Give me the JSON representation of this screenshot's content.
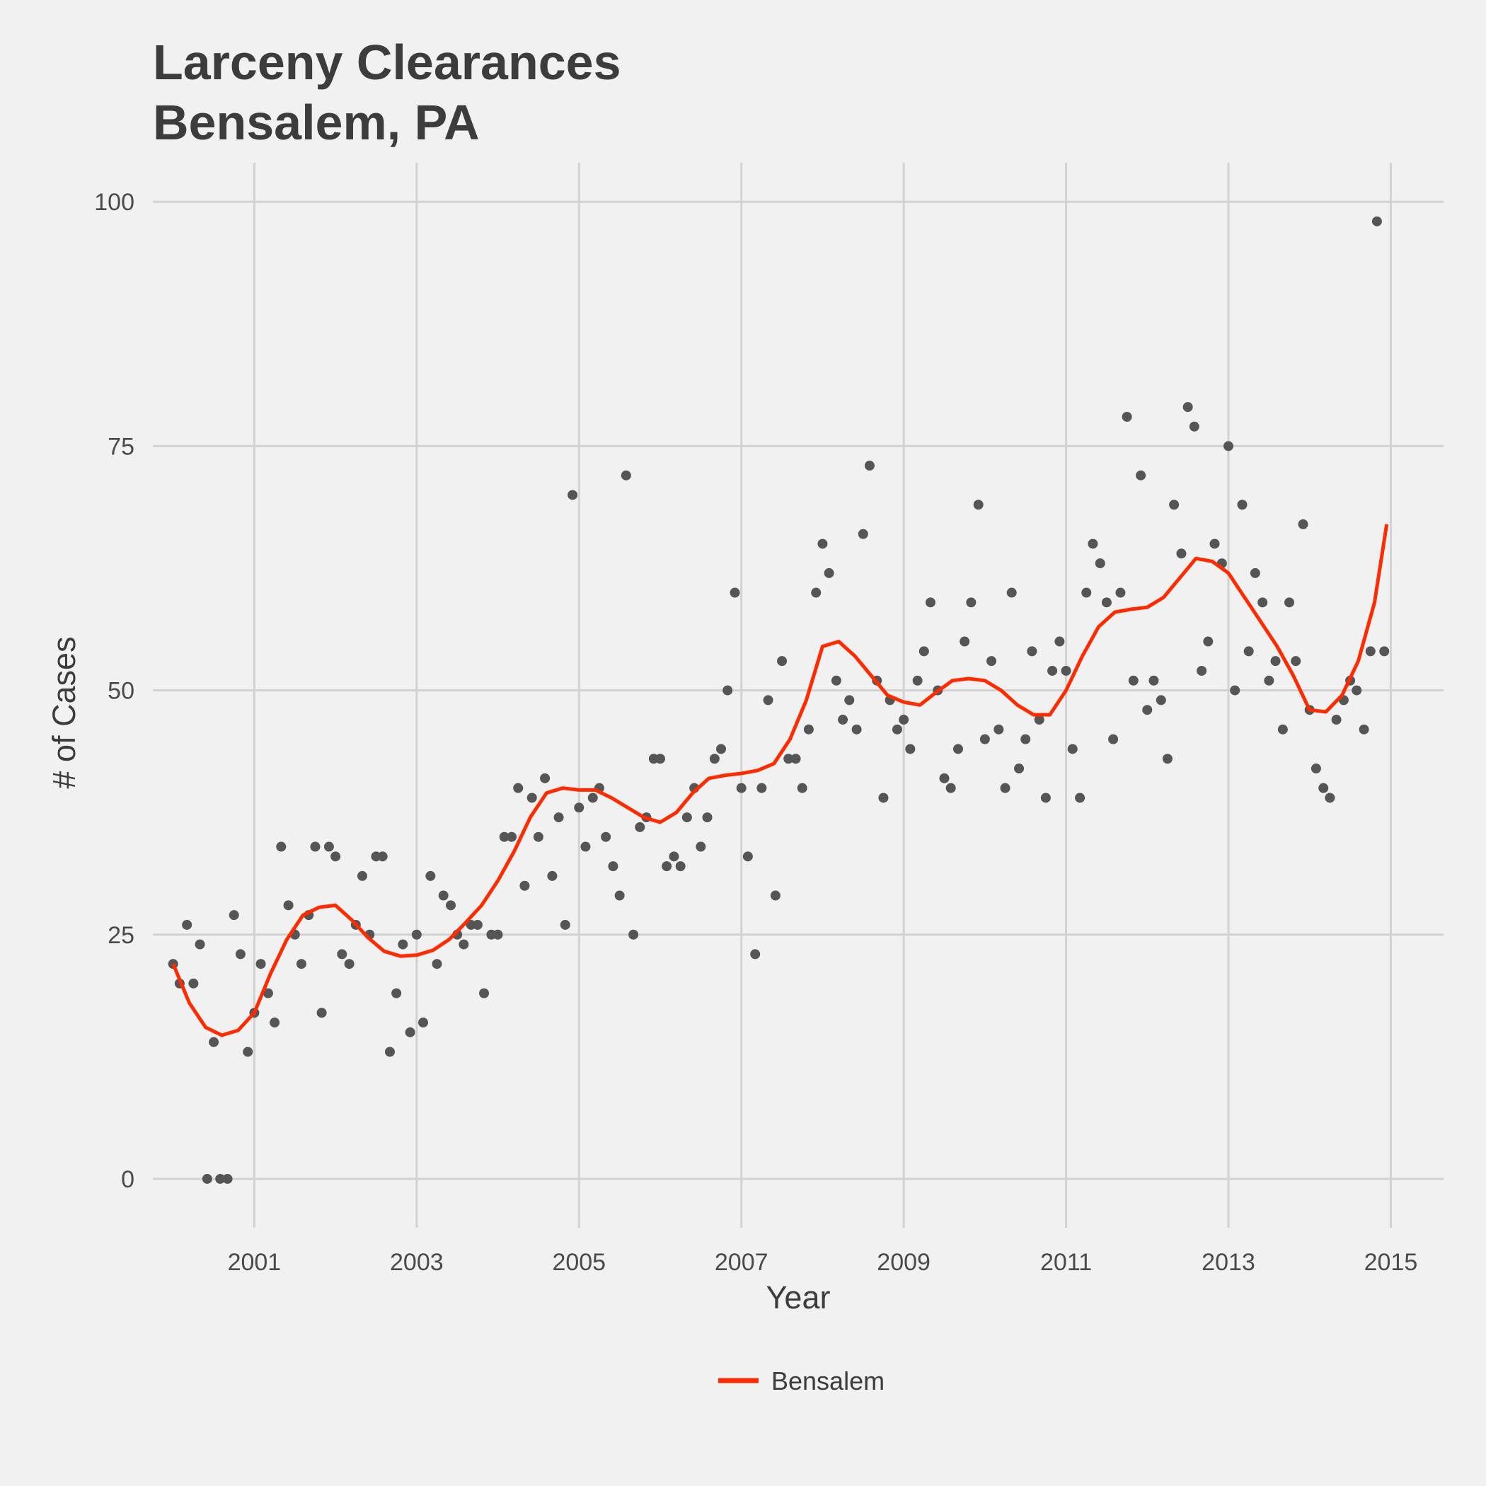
{
  "chart_data": {
    "type": "scatter",
    "title": [
      "Larceny Clearances",
      "Bensalem, PA"
    ],
    "xlabel": "Year",
    "ylabel": "# of Cases",
    "xlim": [
      1999.75,
      2015.65
    ],
    "ylim": [
      -5,
      104
    ],
    "x_ticks": [
      2001,
      2003,
      2005,
      2007,
      2009,
      2011,
      2013,
      2015
    ],
    "y_ticks": [
      0,
      25,
      50,
      75,
      100
    ],
    "grid": true,
    "legend_position": "bottom",
    "colors": {
      "points": "#555555",
      "line": "#ff2a00",
      "grid": "#d2d2d2",
      "background": "#f1f1f1"
    },
    "series": [
      {
        "kind": "points",
        "x": [
          2000.0,
          2000.08,
          2000.17,
          2000.25,
          2000.33,
          2000.42,
          2000.5,
          2000.58,
          2000.67,
          2000.75,
          2000.83,
          2000.92,
          2001.0,
          2001.08,
          2001.17,
          2001.25,
          2001.33,
          2001.42,
          2001.5,
          2001.58,
          2001.67,
          2001.75,
          2001.83,
          2001.92,
          2002.0,
          2002.08,
          2002.17,
          2002.25,
          2002.33,
          2002.42,
          2002.5,
          2002.58,
          2002.67,
          2002.75,
          2002.83,
          2002.92,
          2003.0,
          2003.08,
          2003.17,
          2003.25,
          2003.33,
          2003.42,
          2003.5,
          2003.58,
          2003.67,
          2003.75,
          2003.83,
          2003.92,
          2004.0,
          2004.08,
          2004.17,
          2004.25,
          2004.33,
          2004.42,
          2004.5,
          2004.58,
          2004.67,
          2004.75,
          2004.83,
          2004.92,
          2005.0,
          2005.08,
          2005.17,
          2005.25,
          2005.33,
          2005.42,
          2005.5,
          2005.58,
          2005.67,
          2005.75,
          2005.83,
          2005.92,
          2006.0,
          2006.08,
          2006.17,
          2006.25,
          2006.33,
          2006.42,
          2006.5,
          2006.58,
          2006.67,
          2006.75,
          2006.83,
          2006.92,
          2007.0,
          2007.08,
          2007.17,
          2007.25,
          2007.33,
          2007.42,
          2007.5,
          2007.58,
          2007.67,
          2007.75,
          2007.83,
          2007.92,
          2008.0,
          2008.08,
          2008.17,
          2008.25,
          2008.33,
          2008.42,
          2008.5,
          2008.58,
          2008.67,
          2008.75,
          2008.83,
          2008.92,
          2009.0,
          2009.08,
          2009.17,
          2009.25,
          2009.33,
          2009.42,
          2009.5,
          2009.58,
          2009.67,
          2009.75,
          2009.83,
          2009.92,
          2010.0,
          2010.08,
          2010.17,
          2010.25,
          2010.33,
          2010.42,
          2010.5,
          2010.58,
          2010.67,
          2010.75,
          2010.83,
          2010.92,
          2011.0,
          2011.08,
          2011.17,
          2011.25,
          2011.33,
          2011.42,
          2011.5,
          2011.58,
          2011.67,
          2011.75,
          2011.83,
          2011.92,
          2012.0,
          2012.08,
          2012.17,
          2012.25,
          2012.33,
          2012.42,
          2012.5,
          2012.58,
          2012.67,
          2012.75,
          2012.83,
          2012.92,
          2013.0,
          2013.08,
          2013.17,
          2013.25,
          2013.33,
          2013.42,
          2013.5,
          2013.58,
          2013.67,
          2013.75,
          2013.83,
          2013.92,
          2014.0,
          2014.08,
          2014.17,
          2014.25,
          2014.33,
          2014.42,
          2014.5,
          2014.58,
          2014.67,
          2014.75,
          2014.83,
          2014.92
        ],
        "y": [
          22,
          20,
          26,
          20,
          24,
          0,
          14,
          0,
          0,
          27,
          23,
          13,
          17,
          22,
          19,
          16,
          34,
          28,
          25,
          22,
          27,
          34,
          17,
          34,
          33,
          23,
          22,
          26,
          31,
          25,
          33,
          33,
          13,
          19,
          24,
          15,
          25,
          16,
          31,
          22,
          29,
          28,
          25,
          24,
          26,
          26,
          19,
          25,
          25,
          35,
          35,
          40,
          30,
          39,
          35,
          41,
          31,
          37,
          26,
          70,
          38,
          34,
          39,
          40,
          35,
          32,
          29,
          72,
          25,
          36,
          37,
          43,
          43,
          32,
          33,
          32,
          37,
          40,
          34,
          37,
          43,
          44,
          50,
          60,
          40,
          33,
          23,
          40,
          49,
          29,
          53,
          43,
          43,
          40,
          46,
          60,
          65,
          62,
          51,
          47,
          49,
          46,
          66,
          73,
          51,
          39,
          49,
          46,
          47,
          44,
          51,
          54,
          59,
          50,
          41,
          40,
          44,
          55,
          59,
          69,
          45,
          53,
          46,
          40,
          60,
          42,
          45,
          54,
          47,
          39,
          52,
          55,
          52,
          44,
          39,
          60,
          65,
          63,
          59,
          45,
          60,
          78,
          51,
          72,
          48,
          51,
          49,
          43,
          69,
          64,
          79,
          77,
          52,
          55,
          65,
          63,
          75,
          50,
          69,
          54,
          62,
          59,
          51,
          53,
          46,
          59,
          53,
          67,
          48,
          42,
          40,
          39,
          47,
          49,
          51,
          50,
          46,
          54,
          98,
          54
        ]
      },
      {
        "kind": "line",
        "name": "Bensalem",
        "x": [
          2000.0,
          2000.2,
          2000.4,
          2000.6,
          2000.8,
          2001.0,
          2001.2,
          2001.4,
          2001.6,
          2001.8,
          2002.0,
          2002.2,
          2002.4,
          2002.6,
          2002.8,
          2003.0,
          2003.2,
          2003.4,
          2003.6,
          2003.8,
          2004.0,
          2004.2,
          2004.4,
          2004.6,
          2004.8,
          2005.0,
          2005.2,
          2005.4,
          2005.6,
          2005.8,
          2006.0,
          2006.2,
          2006.4,
          2006.6,
          2006.8,
          2007.0,
          2007.2,
          2007.4,
          2007.6,
          2007.8,
          2008.0,
          2008.2,
          2008.4,
          2008.6,
          2008.8,
          2009.0,
          2009.2,
          2009.4,
          2009.6,
          2009.8,
          2010.0,
          2010.2,
          2010.4,
          2010.6,
          2010.8,
          2011.0,
          2011.2,
          2011.4,
          2011.6,
          2011.8,
          2012.0,
          2012.2,
          2012.4,
          2012.6,
          2012.8,
          2013.0,
          2013.2,
          2013.4,
          2013.6,
          2013.8,
          2014.0,
          2014.2,
          2014.4,
          2014.6,
          2014.8,
          2014.95
        ],
        "y": [
          22,
          18,
          15.5,
          14.7,
          15.2,
          17,
          21,
          24.5,
          27,
          27.8,
          28,
          26.5,
          24.7,
          23.3,
          22.8,
          22.9,
          23.4,
          24.5,
          26.2,
          28,
          30.5,
          33.5,
          37,
          39.5,
          40,
          39.8,
          39.8,
          39,
          38,
          37,
          36.5,
          37.5,
          39.5,
          41,
          41.3,
          41.5,
          41.8,
          42.5,
          45,
          49,
          54.5,
          55,
          53.5,
          51.5,
          49.5,
          48.8,
          48.5,
          49.8,
          51,
          51.2,
          51,
          50,
          48.5,
          47.5,
          47.5,
          50,
          53.5,
          56.5,
          58,
          58.3,
          58.5,
          59.5,
          61.5,
          63.5,
          63.2,
          62,
          59.5,
          57,
          54.5,
          51.5,
          48,
          47.8,
          49.5,
          53,
          59,
          67
        ]
      }
    ]
  }
}
